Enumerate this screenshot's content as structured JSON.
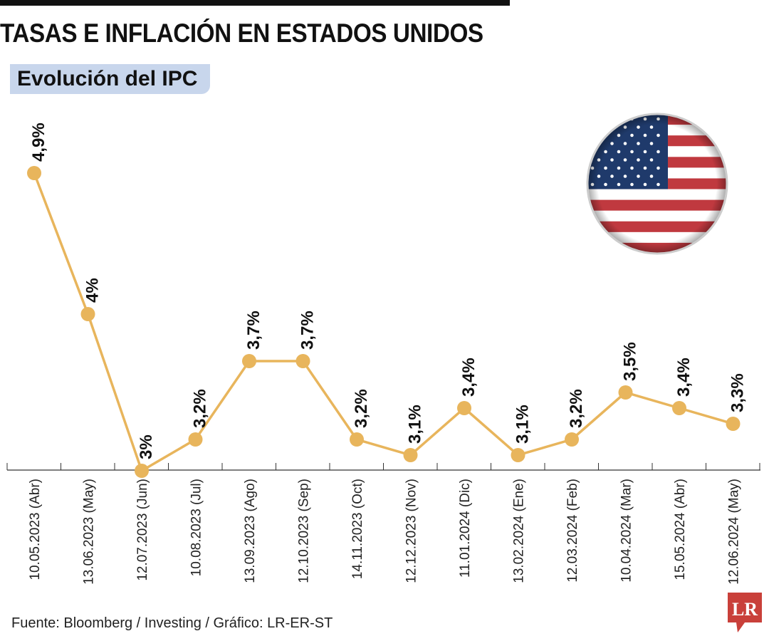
{
  "header": {
    "title": "TASAS E INFLACIÓN EN ESTADOS UNIDOS",
    "subtitle": "Evolución del IPC"
  },
  "footer": {
    "source": "Fuente: Bloomberg / Investing / Gráfico: LR-ER-ST",
    "logo": "LR"
  },
  "colors": {
    "line": "#e8b55c",
    "subtitle_bg": "#c8d6ec",
    "logo": "#c9403a"
  },
  "icons": {
    "flag": "us-flag-icon"
  },
  "chart_data": {
    "type": "line",
    "categories": [
      "10.05.2023 (Abr)",
      "13.06.2023 (May)",
      "12.07.2023 (Jun)",
      "10.08.2023 (Jul)",
      "13.09.2023 (Ago)",
      "12.10.2023 (Sep)",
      "14.11.2023 (Oct)",
      "12.12.2023 (Nov)",
      "11.01.2024 (Dic)",
      "13.02.2024 (Ene)",
      "12.03.2024 (Feb)",
      "10.04.2024 (Mar)",
      "15.05.2024 (Abr)",
      "12.06.2024 (May)"
    ],
    "values": [
      4.9,
      4.0,
      3.0,
      3.2,
      3.7,
      3.7,
      3.2,
      3.1,
      3.4,
      3.1,
      3.2,
      3.5,
      3.4,
      3.3
    ],
    "labels": [
      "4,9%",
      "4%",
      "3%",
      "3,2%",
      "3,7%",
      "3,7%",
      "3,2%",
      "3,1%",
      "3,4%",
      "3,1%",
      "3,2%",
      "3,5%",
      "3,4%",
      "3,3%"
    ],
    "ylim": [
      3.0,
      4.9
    ],
    "grid": false
  }
}
